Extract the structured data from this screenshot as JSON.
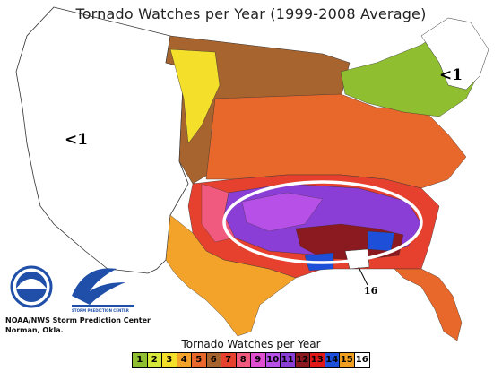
{
  "title": "Tornado Watches per Year (1999-2008 Average)",
  "west_label": "<1",
  "northeast_label": "<1",
  "max_label": "16",
  "credit_line1": "NOAA/NWS Storm Prediction Center",
  "credit_line2": "Norman, Okla.",
  "noaa_logo_text": "NOAA",
  "spc_logo_text": "STORM PREDICTION CENTER",
  "legend": {
    "title": "Tornado Watches per Year",
    "items": [
      {
        "value": "1",
        "color": "#8fbf30"
      },
      {
        "value": "2",
        "color": "#d6e83a"
      },
      {
        "value": "3",
        "color": "#f4e02a"
      },
      {
        "value": "4",
        "color": "#f3a32a"
      },
      {
        "value": "5",
        "color": "#e8672a"
      },
      {
        "value": "6",
        "color": "#a8642e"
      },
      {
        "value": "7",
        "color": "#e6402e"
      },
      {
        "value": "8",
        "color": "#f05a7e"
      },
      {
        "value": "9",
        "color": "#e04fd0"
      },
      {
        "value": "10",
        "color": "#b650e6"
      },
      {
        "value": "11",
        "color": "#8a3ed6"
      },
      {
        "value": "12",
        "color": "#8a1a20"
      },
      {
        "value": "13",
        "color": "#e01818"
      },
      {
        "value": "14",
        "color": "#1e4fd8"
      },
      {
        "value": "15",
        "color": "#f0a020"
      },
      {
        "value": "16",
        "color": "#ffffff"
      }
    ]
  },
  "colors": {
    "background": "#ffffff",
    "west_fill": "#ffffff",
    "county_lines": "#333333",
    "ellipse": "#ffffff"
  }
}
